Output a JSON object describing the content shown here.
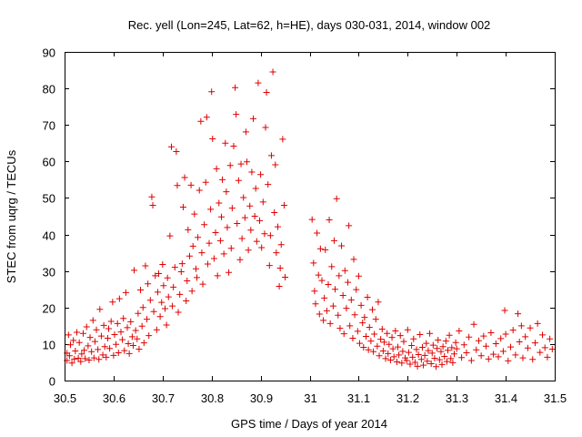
{
  "chart_data": {
    "type": "scatter",
    "title": "Rec. yell (Lon=245, Lat=62, h=HE), days 030-031, 2014, window 002",
    "xlabel": "GPS time / Days of year 2014",
    "ylabel": "STEC from uqrg / TECUs",
    "xlim": [
      30.5,
      31.5
    ],
    "ylim": [
      0,
      90
    ],
    "xticks": [
      "30.5",
      "30.6",
      "30.7",
      "30.8",
      "30.9",
      "31",
      "31.1",
      "31.2",
      "31.3",
      "31.4",
      "31.5"
    ],
    "yticks": [
      "0",
      "10",
      "20",
      "30",
      "40",
      "50",
      "60",
      "70",
      "80",
      "90"
    ],
    "marker": "+",
    "color": "#e00000",
    "grid": false,
    "legend": "none",
    "points": [
      [
        30.505,
        5.5
      ],
      [
        30.505,
        7.5
      ],
      [
        30.508,
        12.5
      ],
      [
        30.51,
        6.8
      ],
      [
        30.512,
        9.8
      ],
      [
        30.515,
        4.8
      ],
      [
        30.518,
        11.0
      ],
      [
        30.52,
        5.9
      ],
      [
        30.522,
        8.1
      ],
      [
        30.525,
        13.2
      ],
      [
        30.528,
        6.1
      ],
      [
        30.53,
        10.4
      ],
      [
        30.533,
        5.2
      ],
      [
        30.535,
        7.3
      ],
      [
        30.538,
        12.9
      ],
      [
        30.54,
        8.3
      ],
      [
        30.542,
        6.0
      ],
      [
        30.545,
        14.7
      ],
      [
        30.548,
        9.5
      ],
      [
        30.55,
        5.6
      ],
      [
        30.552,
        11.8
      ],
      [
        30.555,
        7.9
      ],
      [
        30.558,
        16.5
      ],
      [
        30.56,
        6.2
      ],
      [
        30.562,
        10.7
      ],
      [
        30.565,
        13.9
      ],
      [
        30.568,
        8.5
      ],
      [
        30.57,
        5.8
      ],
      [
        30.572,
        19.5
      ],
      [
        30.575,
        12.2
      ],
      [
        30.578,
        7.0
      ],
      [
        30.58,
        15.1
      ],
      [
        30.582,
        9.3
      ],
      [
        30.585,
        6.4
      ],
      [
        30.588,
        11.6
      ],
      [
        30.59,
        14.2
      ],
      [
        30.592,
        8.8
      ],
      [
        30.595,
        16.2
      ],
      [
        30.598,
        21.5
      ],
      [
        30.6,
        6.9
      ],
      [
        30.602,
        12.6
      ],
      [
        30.605,
        9.9
      ],
      [
        30.608,
        15.6
      ],
      [
        30.61,
        7.6
      ],
      [
        30.612,
        22.4
      ],
      [
        30.615,
        13.3
      ],
      [
        30.618,
        11.2
      ],
      [
        30.62,
        17.0
      ],
      [
        30.622,
        8.2
      ],
      [
        30.625,
        24.1
      ],
      [
        30.628,
        14.5
      ],
      [
        30.63,
        10.1
      ],
      [
        30.632,
        7.4
      ],
      [
        30.635,
        16.1
      ],
      [
        30.638,
        12.0
      ],
      [
        30.64,
        9.6
      ],
      [
        30.642,
        30.2
      ],
      [
        30.645,
        13.7
      ],
      [
        30.648,
        11.4
      ],
      [
        30.65,
        18.4
      ],
      [
        30.652,
        8.6
      ],
      [
        30.655,
        24.8
      ],
      [
        30.658,
        14.9
      ],
      [
        30.66,
        20.0
      ],
      [
        30.662,
        10.3
      ],
      [
        30.665,
        31.4
      ],
      [
        30.668,
        16.8
      ],
      [
        30.67,
        26.5
      ],
      [
        30.672,
        12.3
      ],
      [
        30.675,
        22.0
      ],
      [
        30.678,
        50.3
      ],
      [
        30.68,
        48.0
      ],
      [
        30.682,
        18.9
      ],
      [
        30.685,
        28.7
      ],
      [
        30.688,
        13.9
      ],
      [
        30.69,
        24.2
      ],
      [
        30.692,
        29.3
      ],
      [
        30.695,
        17.5
      ],
      [
        30.698,
        21.4
      ],
      [
        30.7,
        31.8
      ],
      [
        30.702,
        26.0
      ],
      [
        30.705,
        19.7
      ],
      [
        30.708,
        15.2
      ],
      [
        30.71,
        28.1
      ],
      [
        30.712,
        22.9
      ],
      [
        30.715,
        39.6
      ],
      [
        30.718,
        64.0
      ],
      [
        30.72,
        20.4
      ],
      [
        30.722,
        25.6
      ],
      [
        30.725,
        31.0
      ],
      [
        30.728,
        62.7
      ],
      [
        30.73,
        53.4
      ],
      [
        30.732,
        18.7
      ],
      [
        30.735,
        23.6
      ],
      [
        30.738,
        29.8
      ],
      [
        30.74,
        32.0
      ],
      [
        30.742,
        47.5
      ],
      [
        30.745,
        55.6
      ],
      [
        30.748,
        21.8
      ],
      [
        30.75,
        27.3
      ],
      [
        30.752,
        41.3
      ],
      [
        30.755,
        34.1
      ],
      [
        30.758,
        53.5
      ],
      [
        30.76,
        24.5
      ],
      [
        30.762,
        36.8
      ],
      [
        30.765,
        45.6
      ],
      [
        30.768,
        30.6
      ],
      [
        30.77,
        28.2
      ],
      [
        30.772,
        39.2
      ],
      [
        30.775,
        52.1
      ],
      [
        30.778,
        71.0
      ],
      [
        30.78,
        35.0
      ],
      [
        30.782,
        26.4
      ],
      [
        30.785,
        42.7
      ],
      [
        30.788,
        54.3
      ],
      [
        30.79,
        72.1
      ],
      [
        30.792,
        31.9
      ],
      [
        30.795,
        37.6
      ],
      [
        30.798,
        46.9
      ],
      [
        30.8,
        79.1
      ],
      [
        30.802,
        66.2
      ],
      [
        30.805,
        33.4
      ],
      [
        30.808,
        40.5
      ],
      [
        30.81,
        58.0
      ],
      [
        30.812,
        28.7
      ],
      [
        30.815,
        48.6
      ],
      [
        30.818,
        38.3
      ],
      [
        30.82,
        44.8
      ],
      [
        30.822,
        55.0
      ],
      [
        30.825,
        34.7
      ],
      [
        30.828,
        65.0
      ],
      [
        30.83,
        51.7
      ],
      [
        30.832,
        41.9
      ],
      [
        30.835,
        29.6
      ],
      [
        30.838,
        58.9
      ],
      [
        30.84,
        36.2
      ],
      [
        30.842,
        47.2
      ],
      [
        30.845,
        64.2
      ],
      [
        30.848,
        80.2
      ],
      [
        30.85,
        72.9
      ],
      [
        30.852,
        43.0
      ],
      [
        30.855,
        54.8
      ],
      [
        30.858,
        33.1
      ],
      [
        30.86,
        59.3
      ],
      [
        30.862,
        38.9
      ],
      [
        30.865,
        50.1
      ],
      [
        30.868,
        44.6
      ],
      [
        30.87,
        68.1
      ],
      [
        30.872,
        59.9
      ],
      [
        30.875,
        35.7
      ],
      [
        30.878,
        47.8
      ],
      [
        30.88,
        41.2
      ],
      [
        30.882,
        57.1
      ],
      [
        30.885,
        71.7
      ],
      [
        30.888,
        45.0
      ],
      [
        30.89,
        52.6
      ],
      [
        30.892,
        38.1
      ],
      [
        30.895,
        81.5
      ],
      [
        30.898,
        43.8
      ],
      [
        30.9,
        56.4
      ],
      [
        30.902,
        36.4
      ],
      [
        30.905,
        48.9
      ],
      [
        30.908,
        40.2
      ],
      [
        30.91,
        69.3
      ],
      [
        30.912,
        78.9
      ],
      [
        30.915,
        53.7
      ],
      [
        30.918,
        31.5
      ],
      [
        30.92,
        39.7
      ],
      [
        30.922,
        61.6
      ],
      [
        30.925,
        84.5
      ],
      [
        30.928,
        46.0
      ],
      [
        30.93,
        59.1
      ],
      [
        30.932,
        35.0
      ],
      [
        30.935,
        42.1
      ],
      [
        30.938,
        25.8
      ],
      [
        30.94,
        30.8
      ],
      [
        30.942,
        37.2
      ],
      [
        30.945,
        66.1
      ],
      [
        30.948,
        48.0
      ],
      [
        30.95,
        28.3
      ],
      [
        31.005,
        44.1
      ],
      [
        31.008,
        32.2
      ],
      [
        31.01,
        24.5
      ],
      [
        31.012,
        21.0
      ],
      [
        31.015,
        40.4
      ],
      [
        31.018,
        28.9
      ],
      [
        31.02,
        18.2
      ],
      [
        31.022,
        36.1
      ],
      [
        31.025,
        27.4
      ],
      [
        31.028,
        16.5
      ],
      [
        31.03,
        22.6
      ],
      [
        31.032,
        35.8
      ],
      [
        31.035,
        19.1
      ],
      [
        31.038,
        26.3
      ],
      [
        31.04,
        44.0
      ],
      [
        31.042,
        15.6
      ],
      [
        31.045,
        31.2
      ],
      [
        31.048,
        20.4
      ],
      [
        31.05,
        38.3
      ],
      [
        31.052,
        25.0
      ],
      [
        31.055,
        49.8
      ],
      [
        31.058,
        17.9
      ],
      [
        31.06,
        28.7
      ],
      [
        31.062,
        14.3
      ],
      [
        31.065,
        36.9
      ],
      [
        31.068,
        23.3
      ],
      [
        31.07,
        12.8
      ],
      [
        31.072,
        30.1
      ],
      [
        31.075,
        19.8
      ],
      [
        31.078,
        26.9
      ],
      [
        31.08,
        42.4
      ],
      [
        31.082,
        15.0
      ],
      [
        31.085,
        22.1
      ],
      [
        31.088,
        11.6
      ],
      [
        31.09,
        33.2
      ],
      [
        31.092,
        18.0
      ],
      [
        31.095,
        24.9
      ],
      [
        31.098,
        13.5
      ],
      [
        31.1,
        28.6
      ],
      [
        31.102,
        10.2
      ],
      [
        31.105,
        20.6
      ],
      [
        31.108,
        15.8
      ],
      [
        31.11,
        9.1
      ],
      [
        31.112,
        17.3
      ],
      [
        31.115,
        12.1
      ],
      [
        31.118,
        22.8
      ],
      [
        31.12,
        8.4
      ],
      [
        31.122,
        14.6
      ],
      [
        31.125,
        10.8
      ],
      [
        31.128,
        19.4
      ],
      [
        31.13,
        7.9
      ],
      [
        31.132,
        12.7
      ],
      [
        31.135,
        16.8
      ],
      [
        31.138,
        9.4
      ],
      [
        31.14,
        21.5
      ],
      [
        31.142,
        6.8
      ],
      [
        31.145,
        11.3
      ],
      [
        31.148,
        14.1
      ],
      [
        31.15,
        8.1
      ],
      [
        31.152,
        10.5
      ],
      [
        31.155,
        6.0
      ],
      [
        31.158,
        12.9
      ],
      [
        31.16,
        7.4
      ],
      [
        31.162,
        9.9
      ],
      [
        31.165,
        5.6
      ],
      [
        31.168,
        11.8
      ],
      [
        31.17,
        8.7
      ],
      [
        31.172,
        6.5
      ],
      [
        31.175,
        13.6
      ],
      [
        31.178,
        5.1
      ],
      [
        31.18,
        9.2
      ],
      [
        31.182,
        7.0
      ],
      [
        31.185,
        12.3
      ],
      [
        31.188,
        4.8
      ],
      [
        31.19,
        8.0
      ],
      [
        31.192,
        10.7
      ],
      [
        31.195,
        6.2
      ],
      [
        31.198,
        5.5
      ],
      [
        31.2,
        13.9
      ],
      [
        31.202,
        7.7
      ],
      [
        31.205,
        4.5
      ],
      [
        31.208,
        9.6
      ],
      [
        31.21,
        6.4
      ],
      [
        31.212,
        11.4
      ],
      [
        31.215,
        5.0
      ],
      [
        31.218,
        8.5
      ],
      [
        31.22,
        3.9
      ],
      [
        31.222,
        7.1
      ],
      [
        31.225,
        12.6
      ],
      [
        31.228,
        5.8
      ],
      [
        31.23,
        9.1
      ],
      [
        31.232,
        4.2
      ],
      [
        31.235,
        6.9
      ],
      [
        31.238,
        10.2
      ],
      [
        31.24,
        5.3
      ],
      [
        31.242,
        8.2
      ],
      [
        31.245,
        12.9
      ],
      [
        31.248,
        4.6
      ],
      [
        31.25,
        7.5
      ],
      [
        31.252,
        9.7
      ],
      [
        31.255,
        6.1
      ],
      [
        31.258,
        3.8
      ],
      [
        31.26,
        8.8
      ],
      [
        31.262,
        11.1
      ],
      [
        31.265,
        5.7
      ],
      [
        31.268,
        7.9
      ],
      [
        31.27,
        4.4
      ],
      [
        31.272,
        9.3
      ],
      [
        31.275,
        6.6
      ],
      [
        31.278,
        10.8
      ],
      [
        31.28,
        5.2
      ],
      [
        31.282,
        8.3
      ],
      [
        31.285,
        12.4
      ],
      [
        31.288,
        6.0
      ],
      [
        31.29,
        9.0
      ],
      [
        31.292,
        4.9
      ],
      [
        31.295,
        7.3
      ],
      [
        31.298,
        10.4
      ],
      [
        31.3,
        8.7
      ],
      [
        31.305,
        13.6
      ],
      [
        31.31,
        6.3
      ],
      [
        31.315,
        9.8
      ],
      [
        31.32,
        7.6
      ],
      [
        31.325,
        11.9
      ],
      [
        31.33,
        5.5
      ],
      [
        31.335,
        15.4
      ],
      [
        31.34,
        8.4
      ],
      [
        31.345,
        10.9
      ],
      [
        31.35,
        6.8
      ],
      [
        31.355,
        12.2
      ],
      [
        31.36,
        9.4
      ],
      [
        31.365,
        5.9
      ],
      [
        31.37,
        13.1
      ],
      [
        31.375,
        7.2
      ],
      [
        31.38,
        10.1
      ],
      [
        31.385,
        6.5
      ],
      [
        31.39,
        11.5
      ],
      [
        31.395,
        8.0
      ],
      [
        31.398,
        19.2
      ],
      [
        31.4,
        12.7
      ],
      [
        31.405,
        5.4
      ],
      [
        31.41,
        9.2
      ],
      [
        31.415,
        13.8
      ],
      [
        31.42,
        7.0
      ],
      [
        31.425,
        18.3
      ],
      [
        31.428,
        10.6
      ],
      [
        31.432,
        15.0
      ],
      [
        31.435,
        6.2
      ],
      [
        31.44,
        12.0
      ],
      [
        31.445,
        8.9
      ],
      [
        31.45,
        14.4
      ],
      [
        31.455,
        5.8
      ],
      [
        31.46,
        10.3
      ],
      [
        31.465,
        15.6
      ],
      [
        31.47,
        7.7
      ],
      [
        31.475,
        12.5
      ],
      [
        31.48,
        9.0
      ],
      [
        31.485,
        6.4
      ],
      [
        31.49,
        11.4
      ],
      [
        31.495,
        8.6
      ]
    ]
  }
}
